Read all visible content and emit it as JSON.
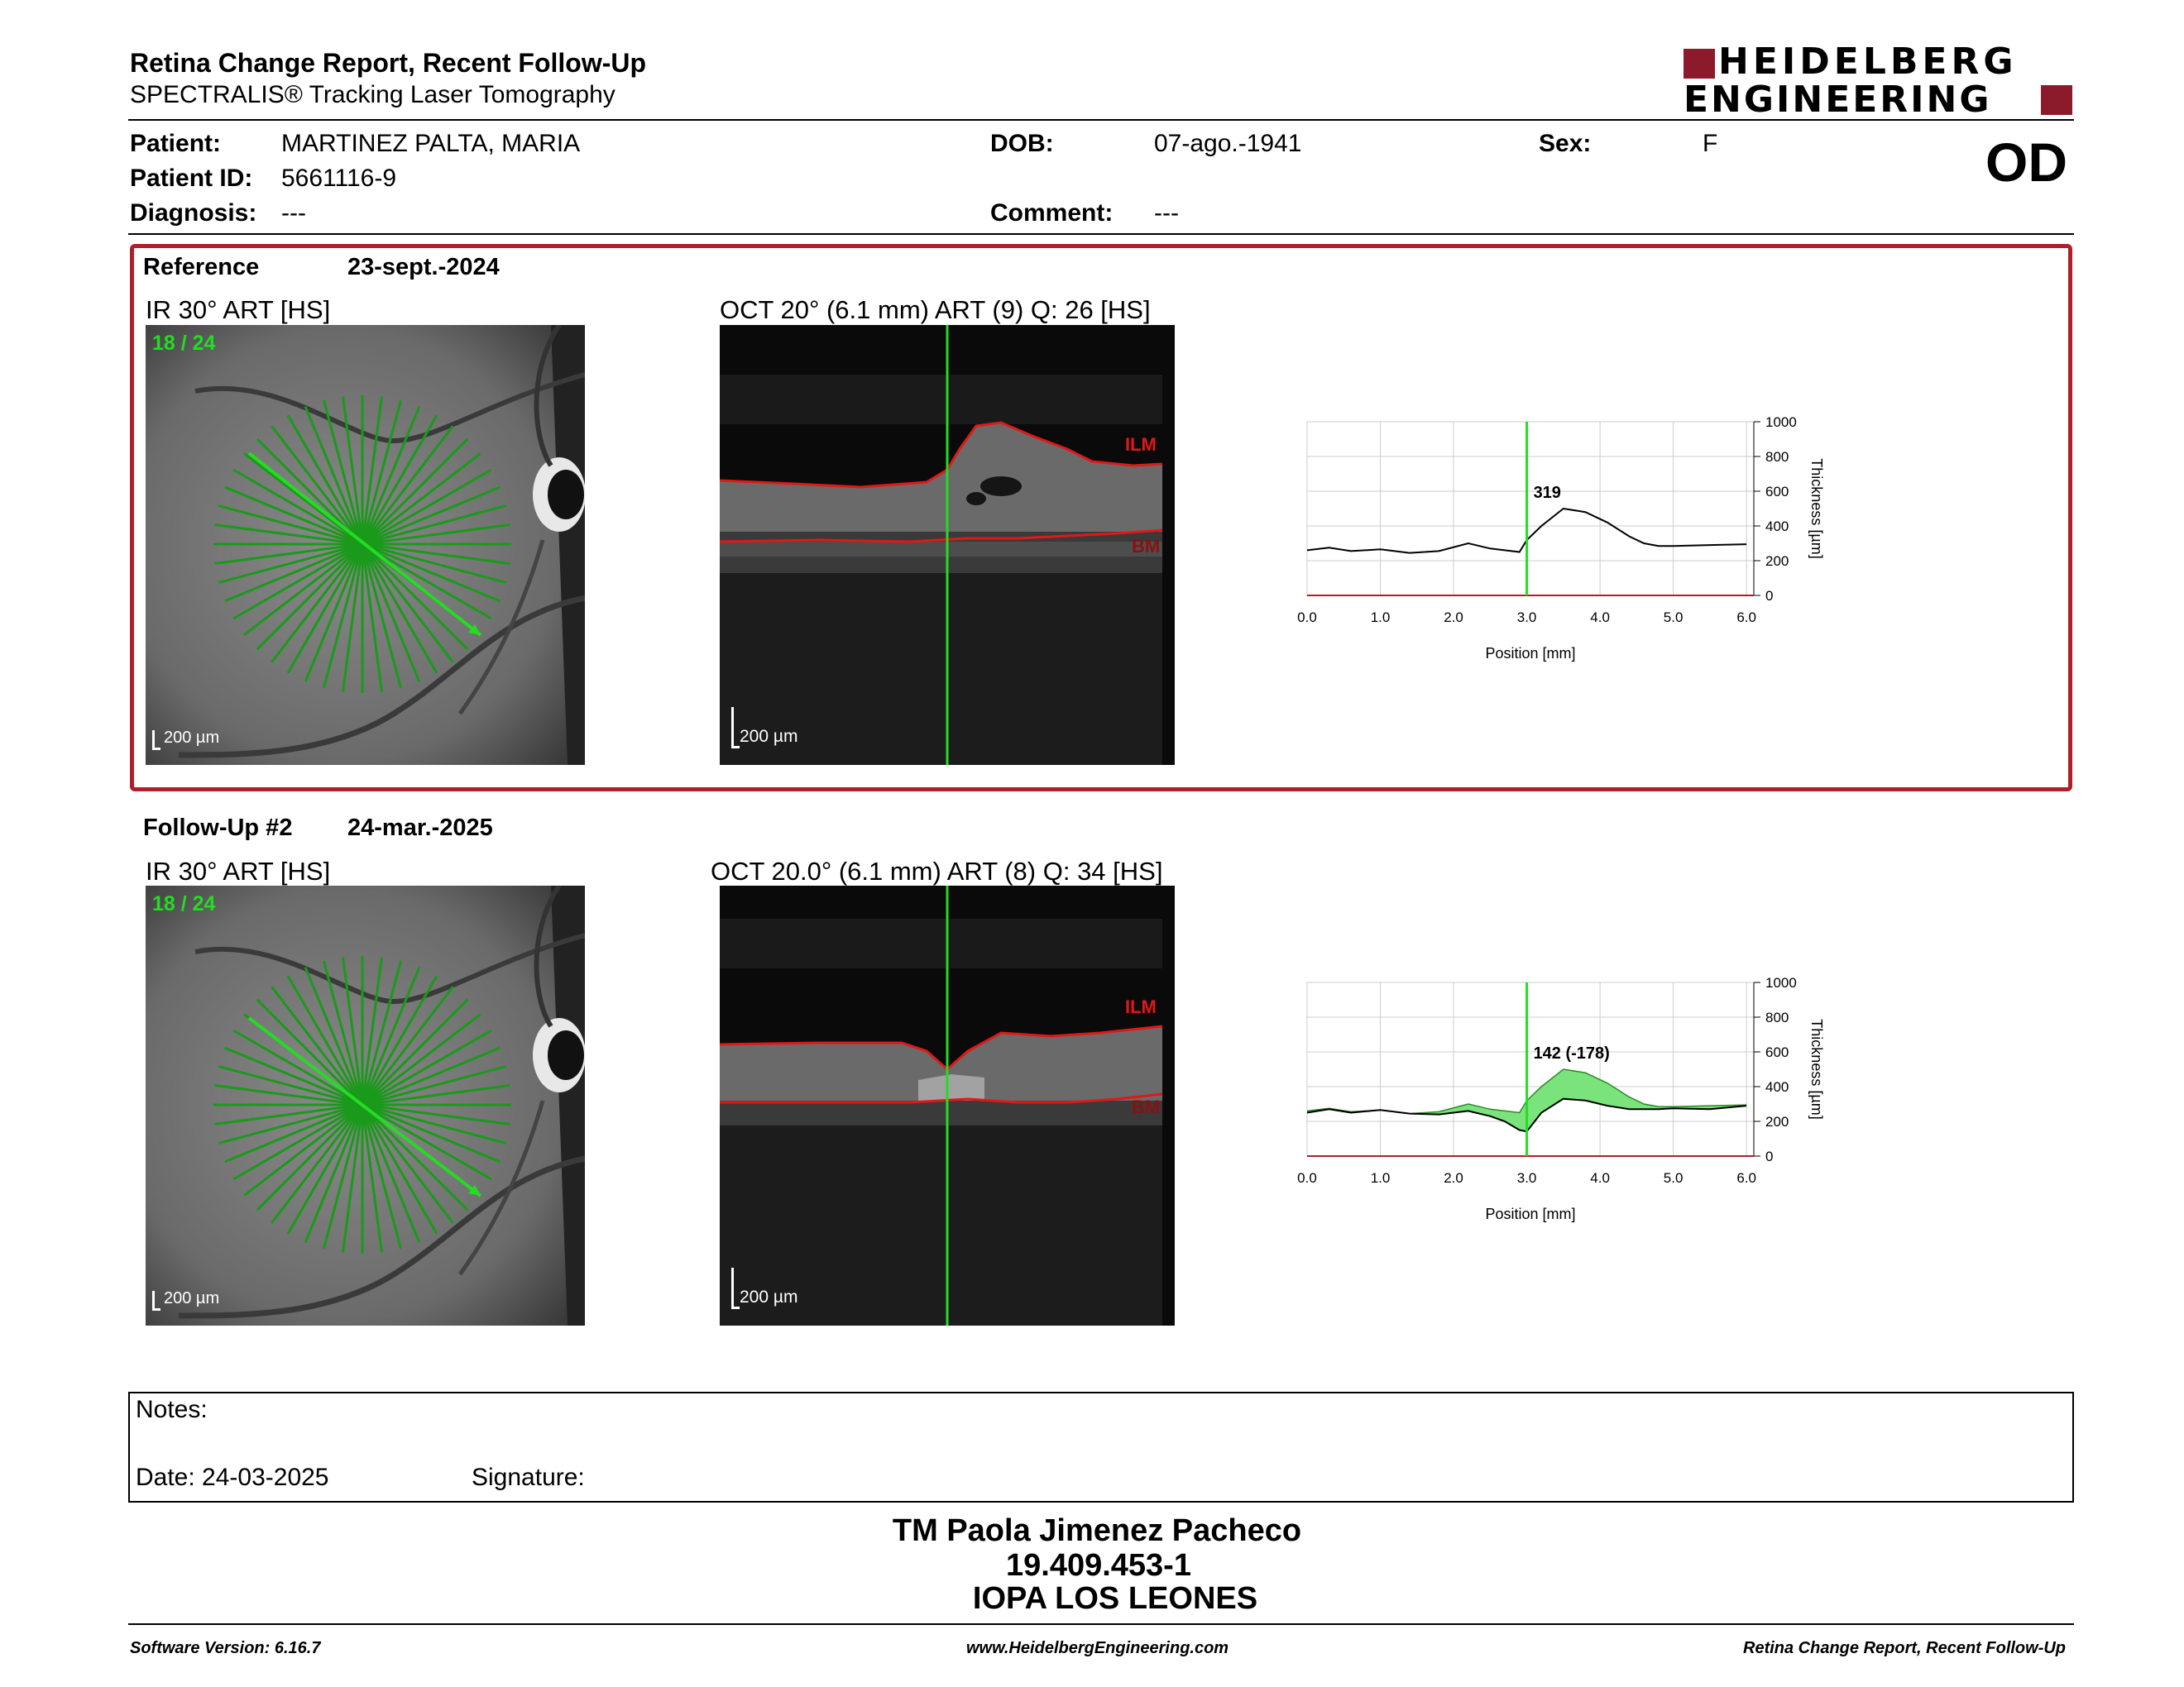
{
  "header": {
    "title": "Retina Change Report, Recent Follow-Up",
    "subtitle": "SPECTRALIS® Tracking Laser Tomography",
    "logo_line1": "HEIDELBERG",
    "logo_line2": "ENGINEERING",
    "eye": "OD"
  },
  "patient": {
    "patient_label": "Patient:",
    "patient_value": "MARTINEZ PALTA, MARIA",
    "id_label": "Patient ID:",
    "id_value": "5661116-9",
    "diagnosis_label": "Diagnosis:",
    "diagnosis_value": "---",
    "dob_label": "DOB:",
    "dob_value": "07-ago.-1941",
    "comment_label": "Comment:",
    "comment_value": "---",
    "sex_label": "Sex:",
    "sex_value": "F"
  },
  "reference": {
    "label": "Reference",
    "date": "23-sept.-2024",
    "ir_title": "IR 30° ART [HS]",
    "ir_count": "18 / 24",
    "ir_scale": "200 µm",
    "oct_title": "OCT 20° (6.1 mm) ART (9) Q: 26 [HS]",
    "oct_scale": "200 µm",
    "ilm": "ILM",
    "bm": "BM",
    "marker_value": "319"
  },
  "followup": {
    "label": "Follow-Up #2",
    "date": "24-mar.-2025",
    "ir_title": "IR 30° ART [HS]",
    "ir_count": "18 / 24",
    "ir_scale": "200 µm",
    "oct_title": "OCT 20.0° (6.1 mm) ART (8) Q: 34 [HS]",
    "oct_scale": "200 µm",
    "ilm": "ILM",
    "bm": "BM",
    "marker_value": "142 (-178)"
  },
  "chart_data": [
    {
      "type": "line",
      "xlabel": "Position [mm]",
      "ylabel": "Thickness [µm]",
      "xlim": [
        0,
        6.1
      ],
      "ylim": [
        0,
        1000
      ],
      "x_ticks": [
        "0.0",
        "1.0",
        "2.0",
        "3.0",
        "4.0",
        "5.0",
        "6.0"
      ],
      "y_ticks": [
        "0",
        "200",
        "400",
        "600",
        "800",
        "1000"
      ],
      "marker_x": 3.0,
      "marker_label": "319",
      "series": [
        {
          "x": [
            0.0,
            0.3,
            0.6,
            1.0,
            1.4,
            1.8,
            2.2,
            2.5,
            2.7,
            2.9,
            3.0,
            3.2,
            3.5,
            3.8,
            4.1,
            4.4,
            4.6,
            4.8,
            5.0,
            5.5,
            6.0
          ],
          "values": [
            260,
            275,
            255,
            265,
            245,
            255,
            300,
            270,
            260,
            250,
            319,
            400,
            500,
            480,
            420,
            340,
            300,
            285,
            285,
            290,
            295
          ]
        }
      ]
    },
    {
      "type": "area",
      "xlabel": "Position [mm]",
      "ylabel": "Thickness [µm]",
      "xlim": [
        0,
        6.1
      ],
      "ylim": [
        0,
        1000
      ],
      "x_ticks": [
        "0.0",
        "1.0",
        "2.0",
        "3.0",
        "4.0",
        "5.0",
        "6.0"
      ],
      "y_ticks": [
        "0",
        "200",
        "400",
        "600",
        "800",
        "1000"
      ],
      "marker_x": 3.0,
      "marker_label": "142 (-178)",
      "series": [
        {
          "x": [
            0.0,
            0.3,
            0.6,
            1.0,
            1.4,
            1.8,
            2.2,
            2.5,
            2.7,
            2.9,
            3.0,
            3.2,
            3.5,
            3.8,
            4.1,
            4.4,
            4.6,
            4.8,
            5.0,
            5.5,
            6.0
          ],
          "values": [
            250,
            270,
            250,
            265,
            245,
            240,
            260,
            230,
            200,
            150,
            142,
            250,
            330,
            320,
            290,
            270,
            270,
            270,
            275,
            270,
            290
          ]
        },
        {
          "x": [
            0.0,
            0.3,
            0.6,
            1.0,
            1.4,
            1.8,
            2.2,
            2.5,
            2.7,
            2.9,
            3.0,
            3.2,
            3.5,
            3.8,
            4.1,
            4.4,
            4.6,
            4.8,
            5.0,
            5.5,
            6.0
          ],
          "values": [
            260,
            275,
            255,
            265,
            245,
            255,
            300,
            270,
            260,
            250,
            319,
            400,
            500,
            480,
            420,
            340,
            300,
            285,
            285,
            290,
            295
          ]
        }
      ]
    }
  ],
  "notes": {
    "notes_label": "Notes:",
    "date_label": "Date: 24-03-2025",
    "signature_label": "Signature:"
  },
  "signoff": {
    "name": "TM Paola Jimenez Pacheco",
    "rut": "19.409.453-1",
    "clinic": "IOPA LOS LEONES"
  },
  "footer": {
    "software": "Software Version: 6.16.7",
    "url": "www.HeidelbergEngineering.com",
    "report": "Retina Change Report, Recent Follow-Up"
  },
  "colors": {
    "accent_red": "#b01e2a",
    "scan_green": "#1ec81e",
    "ilm_red": "#d01010"
  }
}
